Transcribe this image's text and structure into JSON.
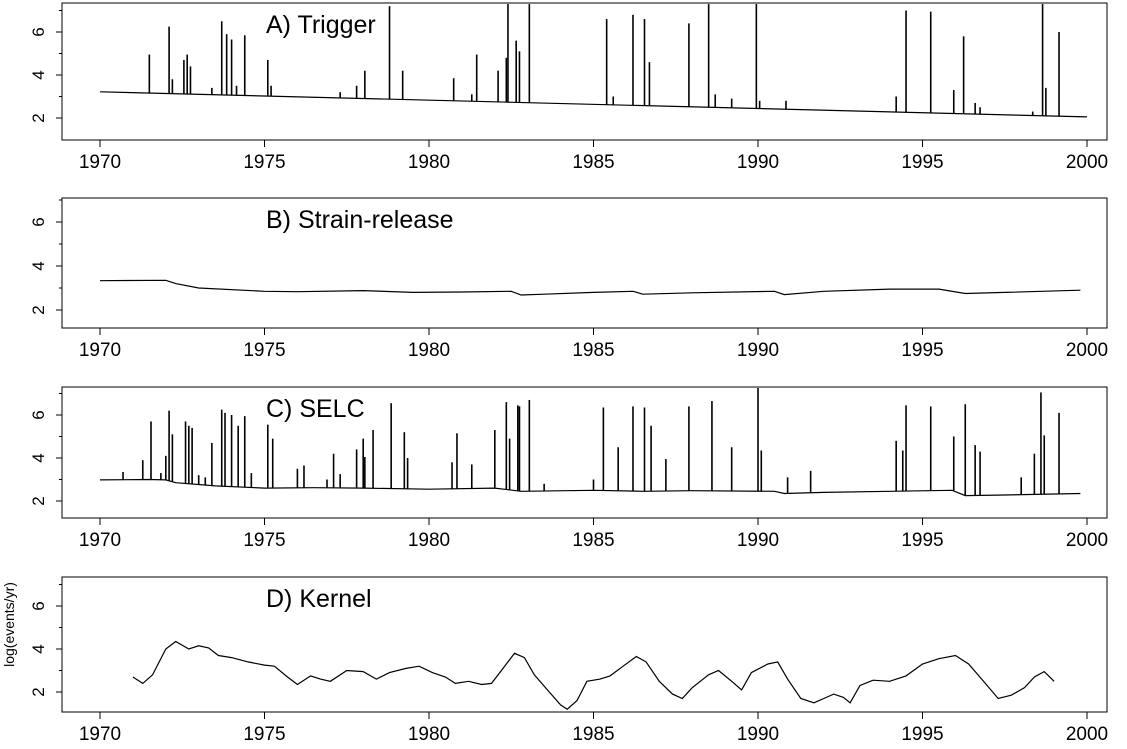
{
  "chart_data": [
    {
      "type": "line",
      "title": "A)  Trigger",
      "xlabel": "",
      "ylabel": "",
      "xlim": [
        1970,
        2000
      ],
      "ylim": [
        1.5,
        7.3
      ],
      "xticks": [
        "1970",
        "1975",
        "1980",
        "1985",
        "1990",
        "1995",
        "2000"
      ],
      "yticks": [
        "2",
        "4",
        "6"
      ],
      "baseline": [
        [
          1970.0,
          3.22
        ],
        [
          2000.0,
          2.05
        ]
      ],
      "spikes": [
        {
          "x": 1971.5,
          "y": 4.95
        },
        {
          "x": 1972.1,
          "y": 6.25
        },
        {
          "x": 1972.2,
          "y": 3.8
        },
        {
          "x": 1972.55,
          "y": 4.7
        },
        {
          "x": 1972.65,
          "y": 4.95
        },
        {
          "x": 1972.75,
          "y": 4.4
        },
        {
          "x": 1973.4,
          "y": 3.4
        },
        {
          "x": 1973.7,
          "y": 6.5
        },
        {
          "x": 1973.85,
          "y": 5.9
        },
        {
          "x": 1974.0,
          "y": 5.65
        },
        {
          "x": 1974.15,
          "y": 3.5
        },
        {
          "x": 1974.4,
          "y": 5.85
        },
        {
          "x": 1975.1,
          "y": 4.7
        },
        {
          "x": 1975.2,
          "y": 3.5
        },
        {
          "x": 1977.3,
          "y": 3.2
        },
        {
          "x": 1977.8,
          "y": 3.5
        },
        {
          "x": 1978.05,
          "y": 4.2
        },
        {
          "x": 1978.8,
          "y": 7.2
        },
        {
          "x": 1979.2,
          "y": 4.2
        },
        {
          "x": 1980.75,
          "y": 3.85
        },
        {
          "x": 1981.3,
          "y": 3.1
        },
        {
          "x": 1981.45,
          "y": 4.95
        },
        {
          "x": 1982.1,
          "y": 4.2
        },
        {
          "x": 1982.35,
          "y": 4.8
        },
        {
          "x": 1982.4,
          "y": 7.3
        },
        {
          "x": 1982.65,
          "y": 5.6
        },
        {
          "x": 1982.75,
          "y": 5.1
        },
        {
          "x": 1983.05,
          "y": 7.3
        },
        {
          "x": 1985.4,
          "y": 6.6
        },
        {
          "x": 1985.6,
          "y": 3.0
        },
        {
          "x": 1986.2,
          "y": 6.8
        },
        {
          "x": 1986.55,
          "y": 6.6
        },
        {
          "x": 1986.7,
          "y": 4.6
        },
        {
          "x": 1987.9,
          "y": 6.4
        },
        {
          "x": 1988.5,
          "y": 7.3
        },
        {
          "x": 1988.7,
          "y": 3.1
        },
        {
          "x": 1989.2,
          "y": 2.9
        },
        {
          "x": 1989.95,
          "y": 7.3
        },
        {
          "x": 1990.05,
          "y": 2.8
        },
        {
          "x": 1990.85,
          "y": 2.8
        },
        {
          "x": 1994.2,
          "y": 3.0
        },
        {
          "x": 1994.5,
          "y": 7.0
        },
        {
          "x": 1995.25,
          "y": 6.95
        },
        {
          "x": 1995.95,
          "y": 3.3
        },
        {
          "x": 1996.25,
          "y": 5.8
        },
        {
          "x": 1996.6,
          "y": 2.7
        },
        {
          "x": 1996.75,
          "y": 2.5
        },
        {
          "x": 1998.35,
          "y": 2.3
        },
        {
          "x": 1998.65,
          "y": 7.3
        },
        {
          "x": 1998.75,
          "y": 3.4
        },
        {
          "x": 1999.15,
          "y": 6.0
        }
      ]
    },
    {
      "type": "line",
      "title": "B)  Strain-release",
      "xlabel": "",
      "ylabel": "",
      "xlim": [
        1970,
        2000
      ],
      "ylim": [
        1.5,
        7.3
      ],
      "xticks": [
        "1970",
        "1975",
        "1980",
        "1985",
        "1990",
        "1995",
        "2000"
      ],
      "yticks": [
        "2",
        "4",
        "6"
      ],
      "series": [
        {
          "points": [
            [
              1970.0,
              3.33
            ],
            [
              1972.0,
              3.35
            ],
            [
              1972.3,
              3.2
            ],
            [
              1973.0,
              3.0
            ],
            [
              1975.0,
              2.85
            ],
            [
              1976.0,
              2.83
            ],
            [
              1978.0,
              2.88
            ],
            [
              1979.5,
              2.8
            ],
            [
              1981.0,
              2.82
            ],
            [
              1982.5,
              2.85
            ],
            [
              1982.8,
              2.68
            ],
            [
              1983.5,
              2.72
            ],
            [
              1985.0,
              2.8
            ],
            [
              1986.2,
              2.85
            ],
            [
              1986.5,
              2.72
            ],
            [
              1988.0,
              2.78
            ],
            [
              1990.5,
              2.85
            ],
            [
              1990.8,
              2.7
            ],
            [
              1992.0,
              2.85
            ],
            [
              1994.0,
              2.95
            ],
            [
              1995.5,
              2.95
            ],
            [
              1996.3,
              2.75
            ],
            [
              1997.5,
              2.8
            ],
            [
              1999.8,
              2.9
            ]
          ]
        }
      ]
    },
    {
      "type": "line",
      "title": "C)  SELC",
      "xlabel": "",
      "ylabel": "",
      "xlim": [
        1970,
        2000
      ],
      "ylim": [
        1.5,
        7.3
      ],
      "xticks": [
        "1970",
        "1975",
        "1980",
        "1985",
        "1990",
        "1995",
        "2000"
      ],
      "yticks": [
        "2",
        "4",
        "6"
      ],
      "baseline": [
        [
          1970.0,
          2.98
        ],
        [
          1971.5,
          3.0
        ],
        [
          1972.0,
          2.98
        ],
        [
          1972.3,
          2.85
        ],
        [
          1973.5,
          2.7
        ],
        [
          1975.0,
          2.6
        ],
        [
          1976.5,
          2.62
        ],
        [
          1978.0,
          2.6
        ],
        [
          1980.0,
          2.55
        ],
        [
          1982.0,
          2.6
        ],
        [
          1982.8,
          2.45
        ],
        [
          1985.0,
          2.5
        ],
        [
          1986.5,
          2.45
        ],
        [
          1988.0,
          2.48
        ],
        [
          1990.5,
          2.45
        ],
        [
          1990.8,
          2.35
        ],
        [
          1992.0,
          2.4
        ],
        [
          1994.0,
          2.45
        ],
        [
          1995.9,
          2.5
        ],
        [
          1996.3,
          2.25
        ],
        [
          1997.5,
          2.28
        ],
        [
          1999.8,
          2.35
        ]
      ],
      "spikes": [
        {
          "x": 1970.7,
          "y": 3.35
        },
        {
          "x": 1971.3,
          "y": 3.9
        },
        {
          "x": 1971.55,
          "y": 5.7
        },
        {
          "x": 1971.85,
          "y": 3.3
        },
        {
          "x": 1972.0,
          "y": 4.1
        },
        {
          "x": 1972.1,
          "y": 6.2
        },
        {
          "x": 1972.2,
          "y": 5.1
        },
        {
          "x": 1972.6,
          "y": 5.7
        },
        {
          "x": 1972.7,
          "y": 5.5
        },
        {
          "x": 1972.8,
          "y": 5.4
        },
        {
          "x": 1973.0,
          "y": 3.2
        },
        {
          "x": 1973.2,
          "y": 3.1
        },
        {
          "x": 1973.4,
          "y": 4.7
        },
        {
          "x": 1973.7,
          "y": 6.25
        },
        {
          "x": 1973.8,
          "y": 6.1
        },
        {
          "x": 1974.0,
          "y": 6.0
        },
        {
          "x": 1974.2,
          "y": 5.5
        },
        {
          "x": 1974.4,
          "y": 5.95
        },
        {
          "x": 1974.6,
          "y": 3.3
        },
        {
          "x": 1975.1,
          "y": 5.55
        },
        {
          "x": 1975.25,
          "y": 4.9
        },
        {
          "x": 1976.0,
          "y": 3.5
        },
        {
          "x": 1976.2,
          "y": 3.65
        },
        {
          "x": 1976.9,
          "y": 3.0
        },
        {
          "x": 1977.1,
          "y": 4.2
        },
        {
          "x": 1977.3,
          "y": 3.25
        },
        {
          "x": 1977.8,
          "y": 4.4
        },
        {
          "x": 1978.0,
          "y": 4.9
        },
        {
          "x": 1978.05,
          "y": 4.05
        },
        {
          "x": 1978.3,
          "y": 5.3
        },
        {
          "x": 1978.85,
          "y": 6.55
        },
        {
          "x": 1979.25,
          "y": 5.2
        },
        {
          "x": 1979.35,
          "y": 4.0
        },
        {
          "x": 1980.7,
          "y": 3.8
        },
        {
          "x": 1980.85,
          "y": 5.15
        },
        {
          "x": 1981.3,
          "y": 3.7
        },
        {
          "x": 1982.0,
          "y": 5.3
        },
        {
          "x": 1982.35,
          "y": 6.6
        },
        {
          "x": 1982.45,
          "y": 4.9
        },
        {
          "x": 1982.7,
          "y": 6.45
        },
        {
          "x": 1982.75,
          "y": 6.4
        },
        {
          "x": 1983.05,
          "y": 6.7
        },
        {
          "x": 1983.5,
          "y": 2.8
        },
        {
          "x": 1985.0,
          "y": 3.0
        },
        {
          "x": 1985.3,
          "y": 6.35
        },
        {
          "x": 1985.75,
          "y": 4.5
        },
        {
          "x": 1986.2,
          "y": 6.4
        },
        {
          "x": 1986.55,
          "y": 6.35
        },
        {
          "x": 1986.75,
          "y": 5.5
        },
        {
          "x": 1987.2,
          "y": 3.95
        },
        {
          "x": 1987.9,
          "y": 6.4
        },
        {
          "x": 1988.6,
          "y": 6.65
        },
        {
          "x": 1989.2,
          "y": 4.5
        },
        {
          "x": 1990.0,
          "y": 7.3
        },
        {
          "x": 1990.1,
          "y": 4.35
        },
        {
          "x": 1990.9,
          "y": 3.1
        },
        {
          "x": 1991.6,
          "y": 3.4
        },
        {
          "x": 1994.2,
          "y": 4.8
        },
        {
          "x": 1994.4,
          "y": 4.35
        },
        {
          "x": 1994.5,
          "y": 6.45
        },
        {
          "x": 1995.25,
          "y": 6.4
        },
        {
          "x": 1995.95,
          "y": 5.0
        },
        {
          "x": 1996.3,
          "y": 6.5
        },
        {
          "x": 1996.6,
          "y": 4.6
        },
        {
          "x": 1996.75,
          "y": 4.3
        },
        {
          "x": 1998.0,
          "y": 3.1
        },
        {
          "x": 1998.4,
          "y": 4.2
        },
        {
          "x": 1998.6,
          "y": 7.05
        },
        {
          "x": 1998.7,
          "y": 5.05
        },
        {
          "x": 1999.15,
          "y": 6.1
        }
      ]
    },
    {
      "type": "line",
      "title": "D)  Kernel",
      "xlabel": "",
      "ylabel": "log(events/yr)",
      "xlim": [
        1970,
        2000
      ],
      "ylim": [
        1.2,
        7.3
      ],
      "xticks": [
        "1970",
        "1975",
        "1980",
        "1985",
        "1990",
        "1995",
        "2000"
      ],
      "yticks": [
        "2",
        "4",
        "6"
      ],
      "series": [
        {
          "points": [
            [
              1971.0,
              2.7
            ],
            [
              1971.3,
              2.4
            ],
            [
              1971.6,
              2.8
            ],
            [
              1972.0,
              4.0
            ],
            [
              1972.3,
              4.35
            ],
            [
              1972.7,
              4.0
            ],
            [
              1973.0,
              4.15
            ],
            [
              1973.3,
              4.05
            ],
            [
              1973.6,
              3.7
            ],
            [
              1974.0,
              3.6
            ],
            [
              1974.5,
              3.4
            ],
            [
              1975.0,
              3.25
            ],
            [
              1975.3,
              3.2
            ],
            [
              1975.7,
              2.7
            ],
            [
              1976.0,
              2.35
            ],
            [
              1976.4,
              2.75
            ],
            [
              1976.7,
              2.6
            ],
            [
              1977.0,
              2.5
            ],
            [
              1977.5,
              3.0
            ],
            [
              1978.0,
              2.95
            ],
            [
              1978.4,
              2.6
            ],
            [
              1978.8,
              2.9
            ],
            [
              1979.3,
              3.1
            ],
            [
              1979.7,
              3.2
            ],
            [
              1980.1,
              2.9
            ],
            [
              1980.5,
              2.7
            ],
            [
              1980.8,
              2.4
            ],
            [
              1981.2,
              2.5
            ],
            [
              1981.6,
              2.35
            ],
            [
              1981.9,
              2.4
            ],
            [
              1982.2,
              3.0
            ],
            [
              1982.6,
              3.8
            ],
            [
              1982.9,
              3.6
            ],
            [
              1983.2,
              2.8
            ],
            [
              1983.6,
              2.1
            ],
            [
              1984.0,
              1.4
            ],
            [
              1984.2,
              1.2
            ],
            [
              1984.5,
              1.6
            ],
            [
              1984.8,
              2.5
            ],
            [
              1985.2,
              2.6
            ],
            [
              1985.5,
              2.75
            ],
            [
              1985.9,
              3.2
            ],
            [
              1986.3,
              3.65
            ],
            [
              1986.6,
              3.4
            ],
            [
              1987.0,
              2.5
            ],
            [
              1987.4,
              1.9
            ],
            [
              1987.7,
              1.7
            ],
            [
              1988.0,
              2.2
            ],
            [
              1988.5,
              2.8
            ],
            [
              1988.8,
              3.0
            ],
            [
              1989.2,
              2.5
            ],
            [
              1989.5,
              2.1
            ],
            [
              1989.8,
              2.9
            ],
            [
              1990.3,
              3.3
            ],
            [
              1990.6,
              3.4
            ],
            [
              1990.9,
              2.6
            ],
            [
              1991.3,
              1.7
            ],
            [
              1991.7,
              1.5
            ],
            [
              1992.0,
              1.7
            ],
            [
              1992.3,
              1.9
            ],
            [
              1992.6,
              1.75
            ],
            [
              1992.8,
              1.5
            ],
            [
              1993.1,
              2.3
            ],
            [
              1993.5,
              2.55
            ],
            [
              1994.0,
              2.5
            ],
            [
              1994.5,
              2.75
            ],
            [
              1995.0,
              3.3
            ],
            [
              1995.5,
              3.55
            ],
            [
              1996.0,
              3.7
            ],
            [
              1996.4,
              3.3
            ],
            [
              1996.8,
              2.6
            ],
            [
              1997.3,
              1.7
            ],
            [
              1997.7,
              1.85
            ],
            [
              1998.1,
              2.2
            ],
            [
              1998.4,
              2.7
            ],
            [
              1998.7,
              2.95
            ],
            [
              1999.0,
              2.5
            ]
          ]
        }
      ]
    }
  ]
}
